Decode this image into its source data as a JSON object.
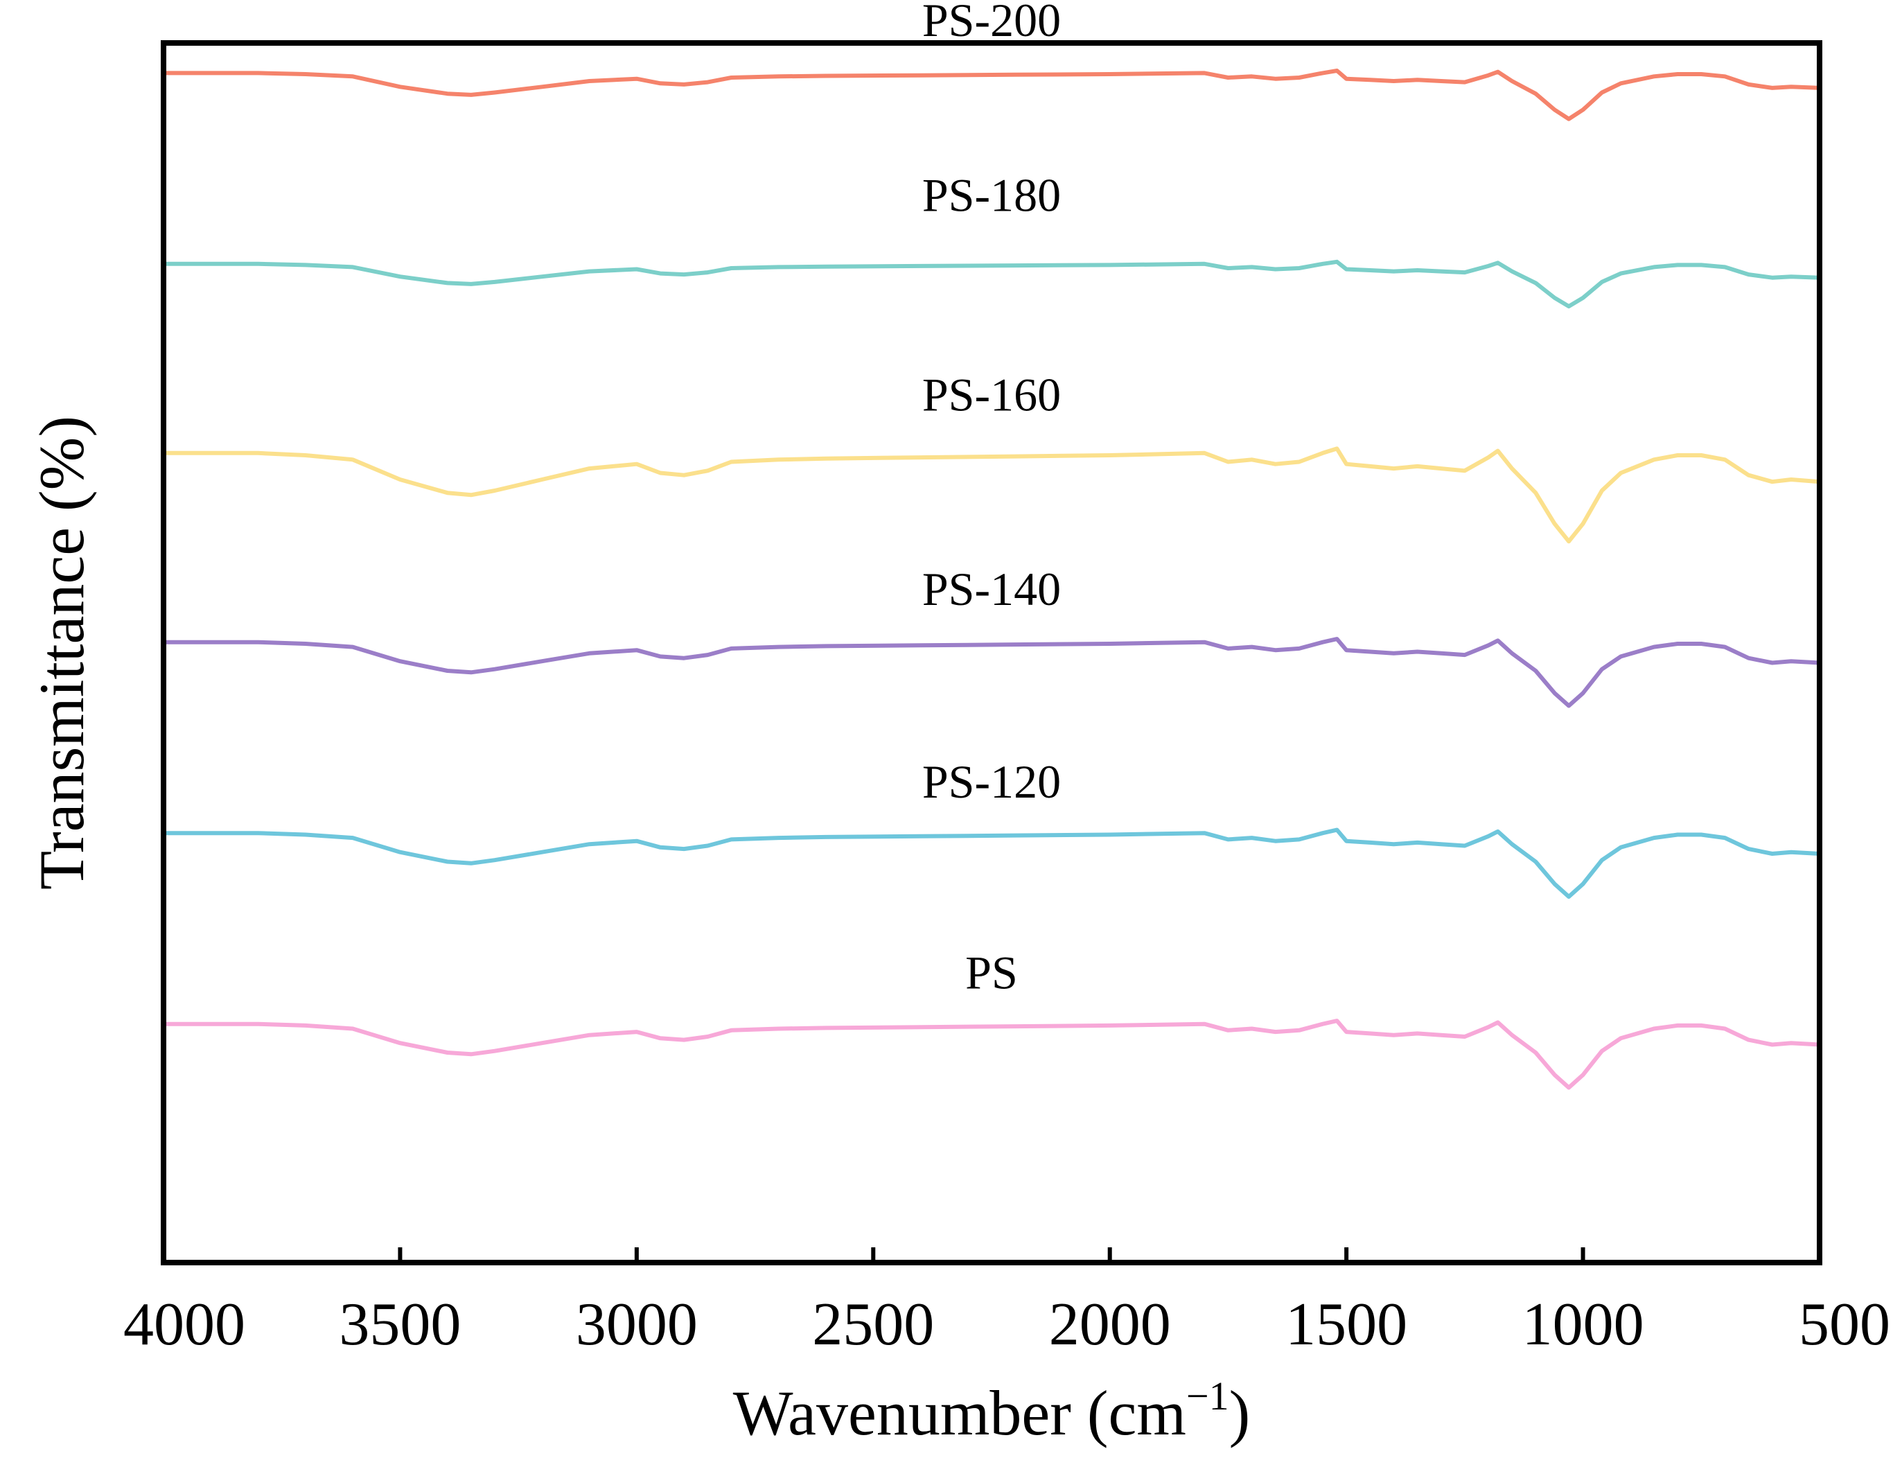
{
  "chart_data": {
    "type": "line",
    "title": "",
    "xlabel": "Wavenumber (cm",
    "xlabel_superscript": "−1",
    "xlabel_close": ")",
    "ylabel": "Transmittance (%)",
    "xlim": [
      4000,
      500
    ],
    "x_reversed": true,
    "xticks": [
      4000,
      3500,
      3000,
      2500,
      2000,
      1500,
      1000,
      500
    ],
    "xtick_labels": [
      "4000",
      "3500",
      "3000",
      "2500",
      "2000",
      "1500",
      "1000",
      "500"
    ],
    "ylim": [
      0,
      6.9
    ],
    "y_ticks_shown": false,
    "grid": false,
    "legend": "inline labels above each trace",
    "x": [
      4000,
      3900,
      3800,
      3700,
      3600,
      3500,
      3400,
      3350,
      3300,
      3200,
      3100,
      3000,
      2950,
      2900,
      2850,
      2800,
      2700,
      2600,
      2400,
      2200,
      2000,
      1800,
      1750,
      1700,
      1650,
      1600,
      1550,
      1520,
      1500,
      1450,
      1400,
      1350,
      1300,
      1250,
      1200,
      1180,
      1150,
      1100,
      1060,
      1030,
      1000,
      960,
      920,
      850,
      800,
      750,
      700,
      650,
      600,
      560,
      500
    ],
    "base_profile": [
      0,
      0,
      0,
      0.01,
      0.03,
      0.12,
      0.18,
      0.19,
      0.17,
      0.12,
      0.07,
      0.05,
      0.09,
      0.1,
      0.08,
      0.04,
      0.03,
      0.025,
      0.02,
      0.015,
      0.01,
      0.0,
      0.04,
      0.03,
      0.05,
      0.04,
      0.0,
      -0.02,
      0.05,
      0.06,
      0.07,
      0.06,
      0.07,
      0.08,
      0.02,
      -0.01,
      0.07,
      0.18,
      0.32,
      0.4,
      0.32,
      0.17,
      0.09,
      0.03,
      0.01,
      0.01,
      0.03,
      0.1,
      0.13,
      0.12,
      0.13
    ],
    "series": [
      {
        "name": "PS",
        "baseline": 1.35,
        "scale": 0.9,
        "color": "#f7a8d8"
      },
      {
        "name": "PS-120",
        "baseline": 2.43,
        "scale": 0.9,
        "color": "#6ec6dc"
      },
      {
        "name": "PS-140",
        "baseline": 3.51,
        "scale": 0.9,
        "color": "#9b7ec8"
      },
      {
        "name": "PS-160",
        "baseline": 4.58,
        "scale": 1.25,
        "color": "#fbe08c"
      },
      {
        "name": "PS-180",
        "baseline": 5.65,
        "scale": 0.6,
        "color": "#7ccfc9"
      },
      {
        "name": "PS-200",
        "baseline": 6.73,
        "scale": 0.65,
        "color": "#f5836b"
      }
    ],
    "series_labels": [
      {
        "text": "PS",
        "x": 2250,
        "y": 1.55
      },
      {
        "text": "PS-120",
        "x": 2250,
        "y": 2.63
      },
      {
        "text": "PS-140",
        "x": 2250,
        "y": 3.72
      },
      {
        "text": "PS-160",
        "x": 2250,
        "y": 4.82
      },
      {
        "text": "PS-180",
        "x": 2250,
        "y": 5.95
      },
      {
        "text": "PS-200",
        "x": 2250,
        "y": 6.94
      }
    ]
  }
}
